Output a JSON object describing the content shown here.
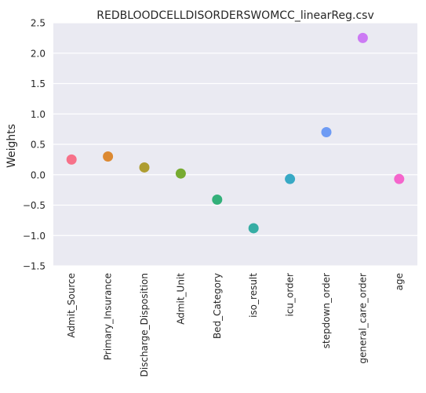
{
  "chart_data": {
    "type": "scatter",
    "title": "REDBLOODCELLDISORDERSWOMCC_linearReg.csv",
    "xlabel": "",
    "ylabel": "Weights",
    "ylim": [
      -1.5,
      2.5
    ],
    "yticks": [
      -1.5,
      -1.0,
      -0.5,
      0.0,
      0.5,
      1.0,
      1.5,
      2.0,
      2.5
    ],
    "ytick_labels": [
      "−1.5",
      "−1.0",
      "−0.5",
      "0.0",
      "0.5",
      "1.0",
      "1.5",
      "2.0",
      "2.5"
    ],
    "grid": true,
    "categories": [
      "Admit_Source",
      "Primary_Insurance",
      "Discharge_Disposition",
      "Admit_Unit",
      "Bed_Category",
      "iso_result",
      "icu_order",
      "stepdown_order",
      "general_care_order",
      "age"
    ],
    "values": [
      0.25,
      0.3,
      0.12,
      0.02,
      -0.41,
      -0.88,
      -0.07,
      0.7,
      2.25,
      -0.07
    ],
    "colors": [
      "#f77189",
      "#dc8932",
      "#ae9d31",
      "#77ab31",
      "#33b07a",
      "#36ada4",
      "#38a9c5",
      "#6e9bf4",
      "#cc7af4",
      "#f565cc"
    ]
  },
  "theme": {
    "plot_background": "#eaeaf2",
    "grid_color": "#ffffff"
  }
}
